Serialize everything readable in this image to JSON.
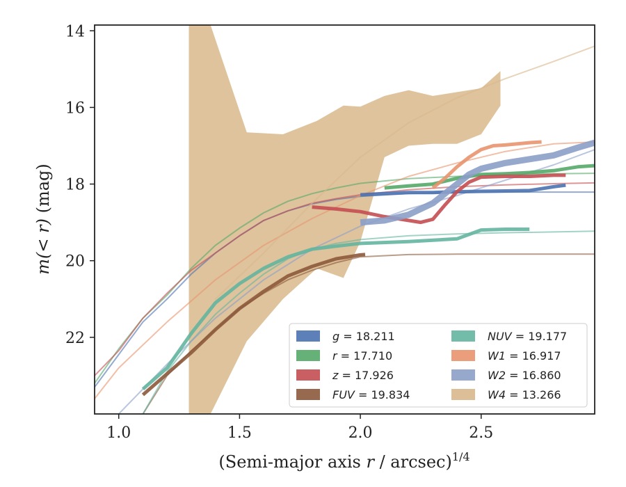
{
  "chart_data": {
    "type": "line",
    "title": "",
    "xlabel_main": "(Semi-major axis ",
    "xlabel_var": "r",
    "xlabel_unit": " / arcsec)",
    "xlabel_exp": "1/4",
    "ylabel_main": "m(< r)",
    "ylabel_unit": " (mag)",
    "xlim": [
      0.9,
      2.97
    ],
    "ylim": [
      24.0,
      13.85
    ],
    "y_inverted": true,
    "x_ticks": [
      1.0,
      1.5,
      2.0,
      2.5
    ],
    "x_tick_labels": [
      "1.0",
      "1.5",
      "2.0",
      "2.5"
    ],
    "y_ticks": [
      14,
      16,
      18,
      20,
      22
    ],
    "y_tick_labels": [
      "14",
      "16",
      "18",
      "20",
      "22"
    ],
    "grid": false,
    "legend_position": "lower-right",
    "legend_columns": 2,
    "series": [
      {
        "band": "g",
        "legend_prefix": "g",
        "legend_value": " = 18.211",
        "italic": true,
        "color": "#4c72b0",
        "model_x": [
          0.9,
          1.0,
          1.1,
          1.2,
          1.3,
          1.4,
          1.5,
          1.6,
          1.7,
          1.8,
          1.9,
          2.0,
          2.2,
          2.4,
          2.6,
          2.8,
          2.97
        ],
        "model_y": [
          23.3,
          22.45,
          21.6,
          21.0,
          20.35,
          19.8,
          19.35,
          18.95,
          18.7,
          18.52,
          18.4,
          18.32,
          18.25,
          18.22,
          18.21,
          18.21,
          18.21
        ],
        "obs_x": [
          2.0,
          2.1,
          2.2,
          2.3,
          2.4,
          2.5,
          2.6,
          2.7,
          2.75,
          2.8,
          2.85
        ],
        "obs_y": [
          18.28,
          18.25,
          18.22,
          18.22,
          18.2,
          18.19,
          18.18,
          18.17,
          18.12,
          18.07,
          18.03
        ]
      },
      {
        "band": "r",
        "legend_prefix": "r",
        "legend_value": " = 17.710",
        "italic": true,
        "color": "#55a868",
        "model_x": [
          0.9,
          1.0,
          1.1,
          1.2,
          1.3,
          1.4,
          1.5,
          1.6,
          1.7,
          1.8,
          1.9,
          2.0,
          2.2,
          2.4,
          2.6,
          2.8,
          2.97
        ],
        "model_y": [
          23.2,
          22.3,
          21.5,
          20.9,
          20.2,
          19.6,
          19.15,
          18.75,
          18.45,
          18.25,
          18.1,
          17.98,
          17.86,
          17.8,
          17.75,
          17.73,
          17.72
        ],
        "obs_x": [
          2.1,
          2.2,
          2.3,
          2.4,
          2.5,
          2.6,
          2.7,
          2.8,
          2.9,
          2.97
        ],
        "obs_y": [
          18.1,
          18.05,
          18.0,
          17.85,
          17.75,
          17.73,
          17.7,
          17.65,
          17.55,
          17.52
        ]
      },
      {
        "band": "z",
        "legend_prefix": "z",
        "legend_value": " = 17.926",
        "italic": true,
        "color": "#c44e52",
        "model_x": [
          0.9,
          1.0,
          1.1,
          1.2,
          1.3,
          1.4,
          1.5,
          1.6,
          1.7,
          1.8,
          1.9,
          2.0,
          2.2,
          2.4,
          2.6,
          2.8,
          2.97
        ],
        "model_y": [
          23.0,
          22.35,
          21.5,
          20.85,
          20.25,
          19.8,
          19.35,
          18.95,
          18.7,
          18.5,
          18.38,
          18.28,
          18.15,
          18.07,
          18.02,
          17.99,
          17.97
        ],
        "obs_x": [
          1.8,
          1.9,
          2.0,
          2.1,
          2.2,
          2.25,
          2.3,
          2.35,
          2.4,
          2.45,
          2.5,
          2.6,
          2.7,
          2.8,
          2.85
        ],
        "obs_y": [
          18.6,
          18.65,
          18.72,
          18.85,
          18.95,
          19.0,
          18.92,
          18.55,
          18.2,
          17.95,
          17.82,
          17.8,
          17.8,
          17.77,
          17.77
        ]
      },
      {
        "band": "FUV",
        "legend_prefix": "FUV",
        "legend_value": " = 19.834",
        "italic": true,
        "color": "#8c5a3c",
        "model_x": [
          1.1,
          1.2,
          1.3,
          1.4,
          1.5,
          1.6,
          1.7,
          1.8,
          1.9,
          2.0,
          2.2,
          2.4,
          2.6,
          2.8,
          2.97
        ],
        "model_y": [
          24.0,
          23.0,
          22.35,
          21.8,
          21.25,
          20.85,
          20.5,
          20.25,
          20.05,
          19.9,
          19.84,
          19.83,
          19.83,
          19.83,
          19.83
        ],
        "obs_x": [
          1.1,
          1.2,
          1.3,
          1.4,
          1.5,
          1.6,
          1.7,
          1.8,
          1.9,
          2.0,
          2.02
        ],
        "obs_y": [
          23.5,
          22.95,
          22.4,
          21.8,
          21.25,
          20.8,
          20.4,
          20.15,
          19.95,
          19.85,
          19.84
        ]
      },
      {
        "band": "NUV",
        "legend_prefix": "NUV",
        "legend_value": " = 19.177",
        "italic": true,
        "color": "#64b5a0",
        "model_x": [
          1.1,
          1.2,
          1.3,
          1.4,
          1.5,
          1.6,
          1.7,
          1.8,
          1.9,
          2.0,
          2.2,
          2.4,
          2.6,
          2.8,
          2.97
        ],
        "model_y": [
          24.0,
          22.9,
          22.1,
          21.4,
          20.85,
          20.35,
          19.95,
          19.7,
          19.55,
          19.45,
          19.35,
          19.3,
          19.27,
          19.25,
          19.23
        ],
        "obs_x": [
          1.1,
          1.2,
          1.3,
          1.4,
          1.5,
          1.6,
          1.7,
          1.8,
          1.9,
          2.0,
          2.2,
          2.4,
          2.5,
          2.6,
          2.7
        ],
        "obs_y": [
          23.35,
          22.8,
          21.9,
          21.1,
          20.6,
          20.2,
          19.9,
          19.7,
          19.62,
          19.55,
          19.5,
          19.43,
          19.2,
          19.18,
          19.18
        ]
      },
      {
        "band": "W1",
        "legend_prefix": "W1",
        "legend_value": " = 16.917",
        "italic": true,
        "color": "#e8946d",
        "model_x": [
          0.9,
          1.0,
          1.2,
          1.4,
          1.6,
          1.8,
          2.0,
          2.2,
          2.4,
          2.6,
          2.8,
          2.97
        ],
        "model_y": [
          23.6,
          22.8,
          21.6,
          20.5,
          19.6,
          18.9,
          18.3,
          17.8,
          17.45,
          17.15,
          16.95,
          16.9
        ],
        "obs_x": [
          2.3,
          2.35,
          2.4,
          2.45,
          2.5,
          2.55,
          2.6,
          2.7,
          2.75
        ],
        "obs_y": [
          18.1,
          17.85,
          17.55,
          17.3,
          17.1,
          17.0,
          16.98,
          16.92,
          16.9
        ]
      },
      {
        "band": "W2",
        "legend_prefix": "W2",
        "legend_value": " = 16.860",
        "italic": true,
        "color": "#8c9fc8",
        "model_x": [
          1.0,
          1.2,
          1.4,
          1.6,
          1.8,
          2.0,
          2.2,
          2.4,
          2.6,
          2.8,
          2.97
        ],
        "model_y": [
          24.0,
          22.7,
          21.5,
          20.5,
          19.7,
          19.1,
          18.65,
          18.3,
          17.9,
          17.5,
          17.1
        ],
        "obs_x": [
          2.0,
          2.1,
          2.2,
          2.3,
          2.4,
          2.45,
          2.5,
          2.6,
          2.7,
          2.8,
          2.9,
          2.97
        ],
        "obs_y": [
          19.0,
          18.95,
          18.8,
          18.5,
          18.0,
          17.75,
          17.6,
          17.45,
          17.35,
          17.25,
          17.05,
          16.92
        ]
      },
      {
        "band": "W4",
        "legend_prefix": "W4",
        "legend_value": " = 13.266",
        "italic": true,
        "color": "#d8b88c",
        "model_x": [
          1.4,
          1.6,
          1.8,
          2.0,
          2.2,
          2.4,
          2.6,
          2.8,
          2.97
        ],
        "model_y": [
          21.0,
          19.8,
          18.5,
          17.3,
          16.4,
          15.75,
          15.25,
          14.8,
          14.4
        ],
        "band_x": [
          1.29,
          1.3,
          1.38,
          1.53,
          1.68,
          1.82,
          1.93,
          2.0,
          2.1,
          2.2,
          2.3,
          2.4,
          2.5,
          2.58
        ],
        "band_upper": [
          13.85,
          13.85,
          13.85,
          16.65,
          16.7,
          16.35,
          15.95,
          15.98,
          15.7,
          15.55,
          15.7,
          15.6,
          15.5,
          15.05
        ],
        "band_lower": [
          24.0,
          24.0,
          24.0,
          22.1,
          21.0,
          20.2,
          20.45,
          19.5,
          17.3,
          17.0,
          16.95,
          16.95,
          16.7,
          15.95
        ]
      }
    ]
  }
}
